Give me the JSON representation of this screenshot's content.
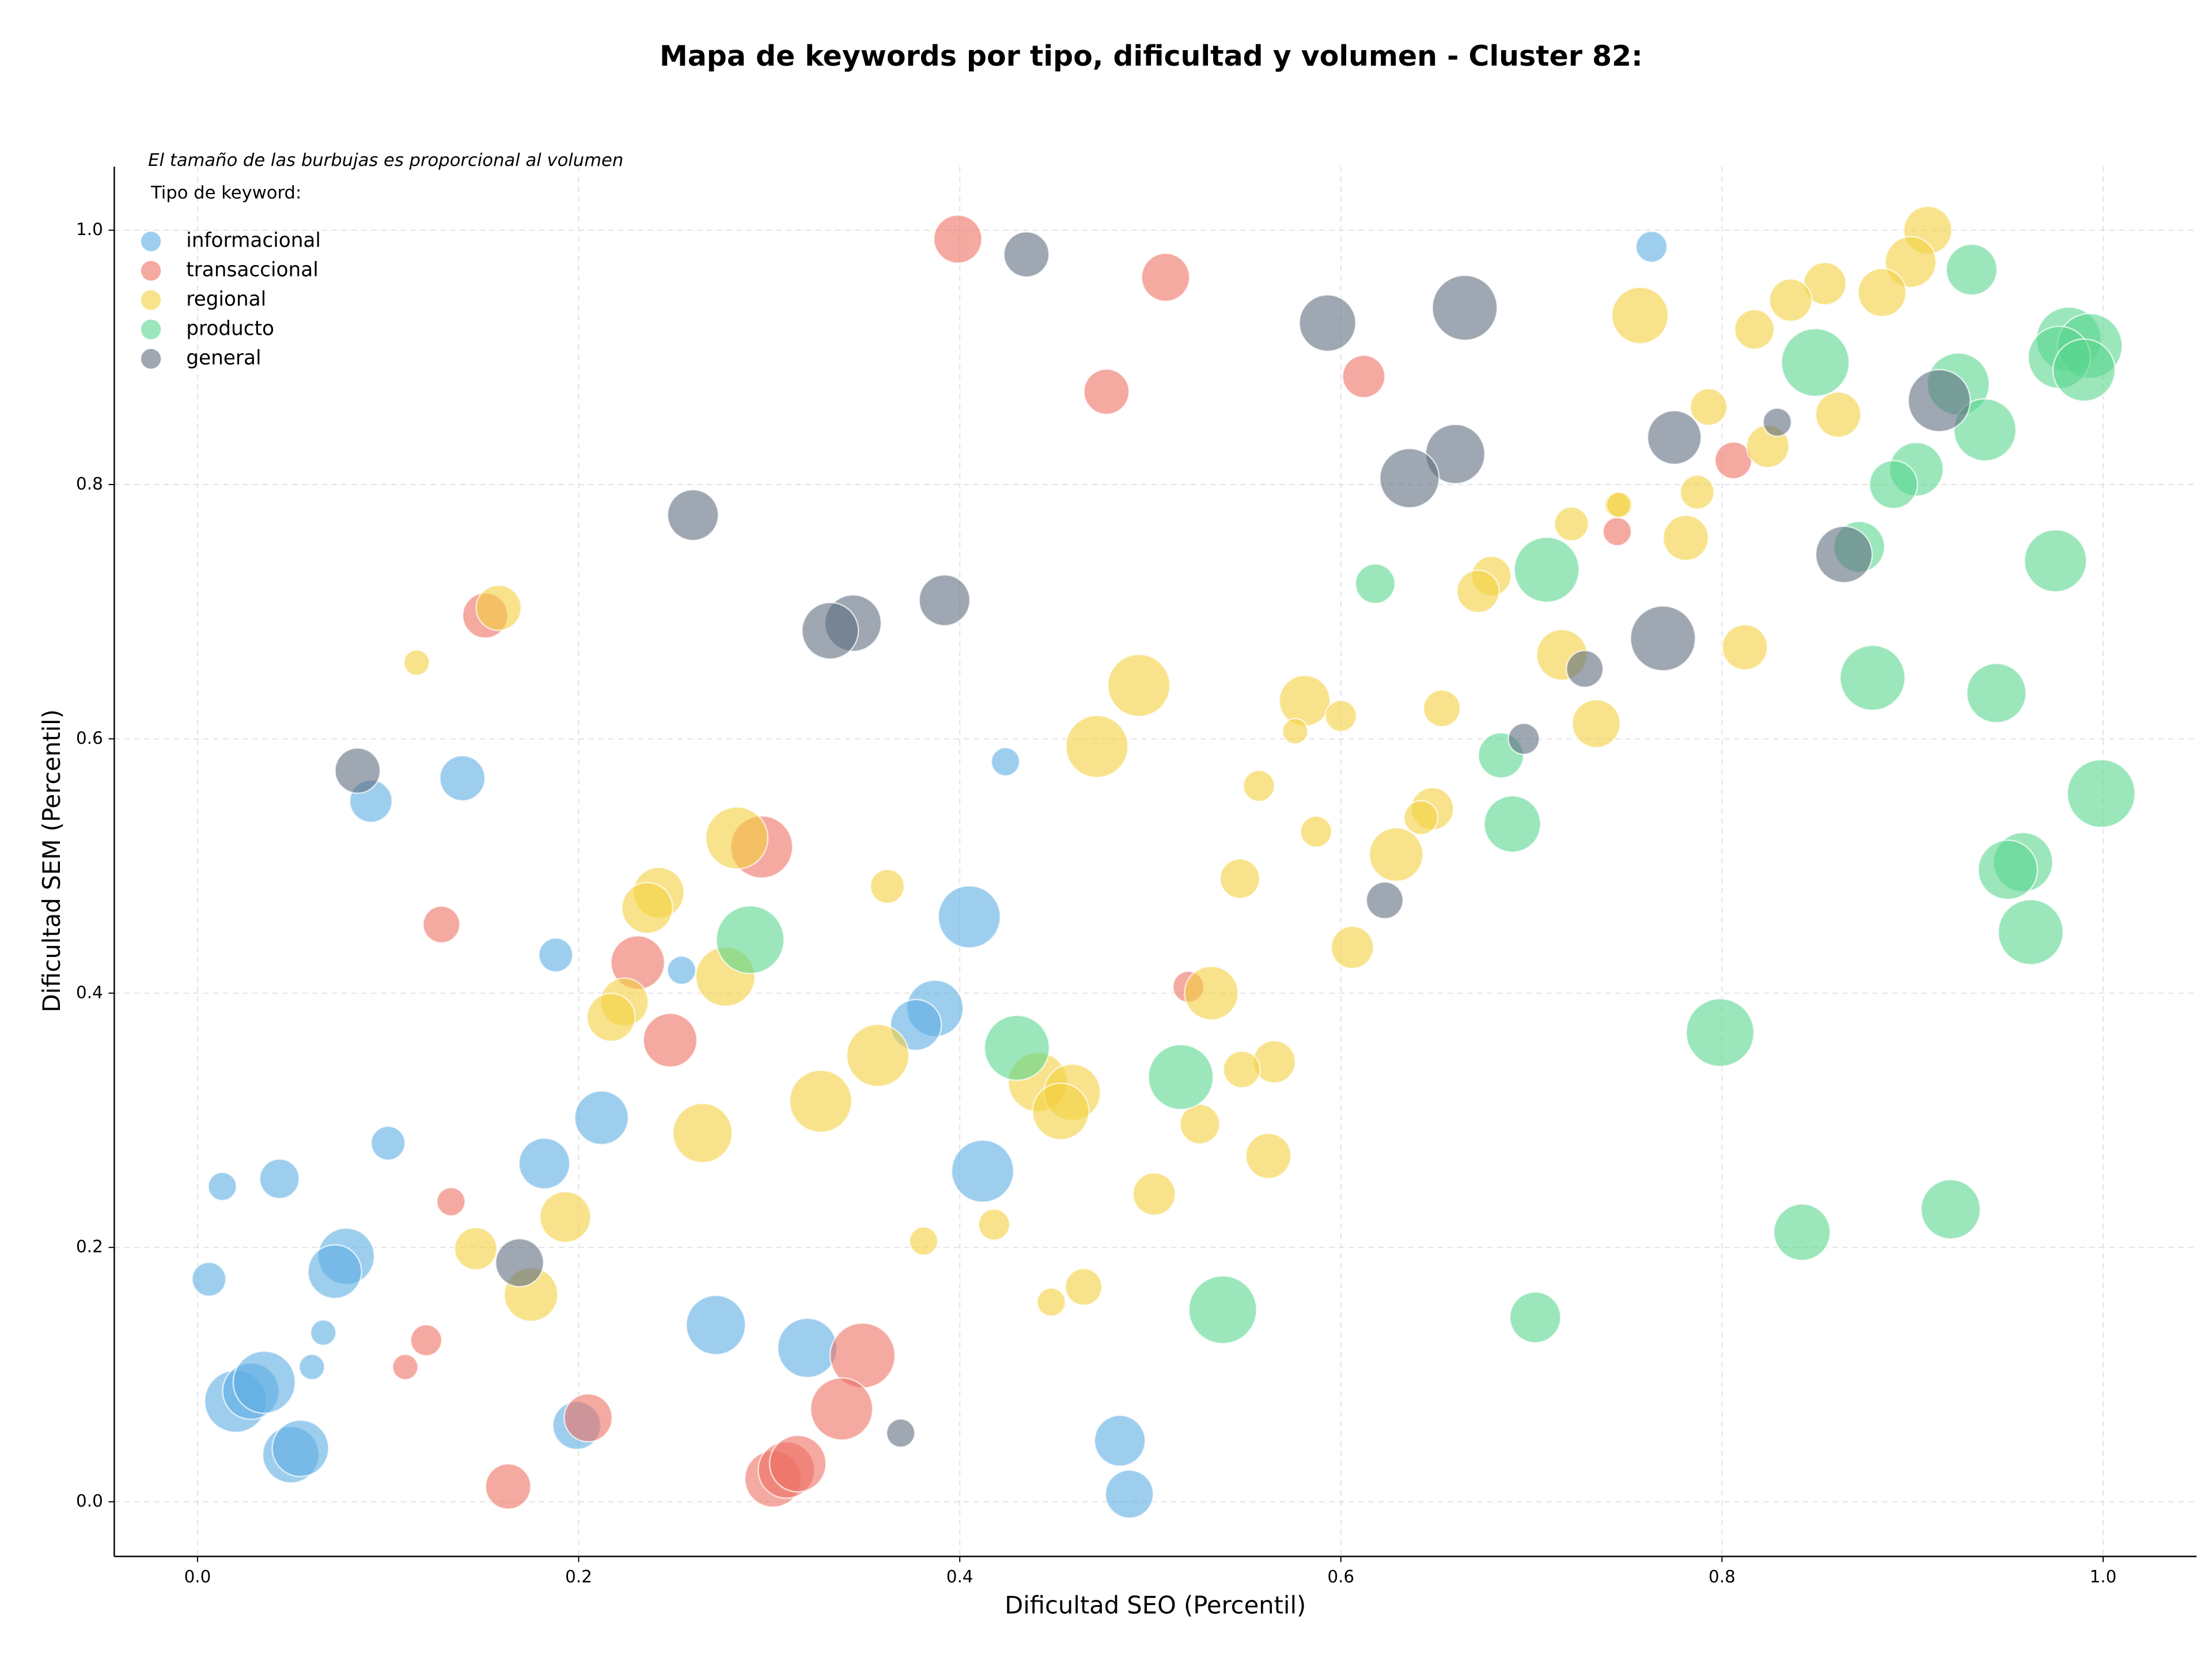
{
  "chart_data": {
    "type": "scatter",
    "title": "Mapa de keywords por tipo, dificultad y volumen - Cluster 82:",
    "note": "El tamaño de las burbujas es proporcional al volumen",
    "legend_title": "Tipo de keyword:",
    "legend_position": "upper left",
    "x_label": "Dificultad SEO (Percentil)",
    "y_label": "Dificultad SEM (Percentil)",
    "xlim": [
      -0.0437,
      1.049
    ],
    "ylim": [
      -0.043,
      1.05
    ],
    "xticks": [
      {
        "value": 0,
        "label": "0.0"
      },
      0.2,
      0.4,
      0.6,
      0.8,
      {
        "value": 1,
        "label": "1.0"
      }
    ],
    "yticks": [
      {
        "value": 0,
        "label": "0.0"
      },
      0.2,
      0.4,
      0.6,
      0.8,
      {
        "value": 1,
        "label": "1.0"
      }
    ],
    "grid": true,
    "series": [
      {
        "name": "informacional",
        "color": "#5DADE2",
        "x": [
          0.763,
          0.424,
          0.139,
          0.091,
          0.188,
          0.254,
          0.405,
          0.387,
          0.377,
          0.212,
          0.182,
          0.1,
          0.013,
          0.043,
          0.412,
          0.006,
          0.078,
          0.072,
          0.066,
          0.06,
          0.272,
          0.32,
          0.02,
          0.028,
          0.035,
          0.049,
          0.054,
          0.199,
          0.484,
          0.489
        ],
        "values": [
          0.987,
          0.582,
          0.569,
          0.551,
          0.43,
          0.418,
          0.46,
          0.388,
          0.375,
          0.302,
          0.266,
          0.282,
          0.248,
          0.254,
          0.26,
          0.175,
          0.193,
          0.181,
          0.133,
          0.106,
          0.139,
          0.121,
          0.079,
          0.087,
          0.094,
          0.037,
          0.042,
          0.06,
          0.048,
          0.006
        ],
        "sizes": [
          121,
          100,
          256,
          225,
          144,
          100,
          484,
          400,
          324,
          361,
          324,
          144,
          100,
          196,
          484,
          144,
          400,
          361,
          81,
          81,
          441,
          441,
          484,
          400,
          484,
          400,
          400,
          289,
          324,
          289
        ]
      },
      {
        "name": "transaccional",
        "color": "#EC7063",
        "x": [
          0.399,
          0.508,
          0.477,
          0.612,
          0.806,
          0.745,
          0.151,
          0.128,
          0.296,
          0.231,
          0.248,
          0.52,
          0.133,
          0.12,
          0.109,
          0.205,
          0.163,
          0.349,
          0.338,
          0.302,
          0.309,
          0.315
        ],
        "values": [
          0.993,
          0.963,
          0.873,
          0.885,
          0.819,
          0.763,
          0.697,
          0.454,
          0.515,
          0.424,
          0.363,
          0.405,
          0.236,
          0.127,
          0.106,
          0.066,
          0.012,
          0.115,
          0.073,
          0.018,
          0.025,
          0.03
        ],
        "sizes": [
          289,
          289,
          256,
          225,
          169,
          100,
          256,
          169,
          484,
          361,
          361,
          121,
          100,
          121,
          81,
          289,
          256,
          529,
          484,
          400,
          400,
          400
        ]
      },
      {
        "name": "regional",
        "color": "#F4D03F",
        "x": [
          0.908,
          0.899,
          0.854,
          0.836,
          0.757,
          0.817,
          0.884,
          0.793,
          0.824,
          0.861,
          0.787,
          0.745,
          0.746,
          0.721,
          0.781,
          0.679,
          0.672,
          0.812,
          0.716,
          0.734,
          0.581,
          0.6,
          0.576,
          0.653,
          0.494,
          0.472,
          0.557,
          0.587,
          0.648,
          0.642,
          0.629,
          0.547,
          0.606,
          0.532,
          0.158,
          0.115,
          0.283,
          0.242,
          0.236,
          0.362,
          0.224,
          0.217,
          0.277,
          0.357,
          0.327,
          0.265,
          0.193,
          0.146,
          0.175,
          0.441,
          0.459,
          0.453,
          0.565,
          0.548,
          0.526,
          0.562,
          0.502,
          0.418,
          0.381,
          0.465,
          0.448
        ],
        "values": [
          1.0,
          0.975,
          0.958,
          0.945,
          0.933,
          0.922,
          0.951,
          0.861,
          0.83,
          0.855,
          0.794,
          0.784,
          0.784,
          0.769,
          0.758,
          0.728,
          0.716,
          0.672,
          0.666,
          0.612,
          0.63,
          0.618,
          0.606,
          0.624,
          0.642,
          0.594,
          0.563,
          0.527,
          0.545,
          0.538,
          0.509,
          0.49,
          0.436,
          0.4,
          0.703,
          0.66,
          0.522,
          0.479,
          0.467,
          0.484,
          0.393,
          0.381,
          0.413,
          0.351,
          0.315,
          0.29,
          0.224,
          0.199,
          0.163,
          0.33,
          0.322,
          0.307,
          0.346,
          0.34,
          0.297,
          0.272,
          0.242,
          0.218,
          0.205,
          0.169,
          0.157
        ],
        "sizes": [
          289,
          324,
          225,
          225,
          400,
          196,
          289,
          169,
          225,
          256,
          144,
          81,
          81,
          144,
          256,
          196,
          225,
          256,
          324,
          289,
          324,
          121,
          81,
          169,
          484,
          484,
          121,
          121,
          225,
          144,
          361,
          196,
          225,
          361,
          256,
          81,
          484,
          324,
          324,
          144,
          289,
          289,
          441,
          484,
          484,
          441,
          324,
          225,
          361,
          441,
          400,
          400,
          225,
          169,
          196,
          256,
          225,
          121,
          100,
          169,
          100
        ]
      },
      {
        "name": "producto",
        "color": "#58D68D",
        "x": [
          0.931,
          0.982,
          0.993,
          0.977,
          0.99,
          0.849,
          0.924,
          0.938,
          0.902,
          0.89,
          0.872,
          0.975,
          0.618,
          0.708,
          0.879,
          0.944,
          0.999,
          0.684,
          0.69,
          0.958,
          0.95,
          0.962,
          0.29,
          0.43,
          0.516,
          0.799,
          0.92,
          0.842,
          0.538,
          0.702
        ],
        "values": [
          0.969,
          0.914,
          0.909,
          0.9,
          0.89,
          0.896,
          0.879,
          0.843,
          0.812,
          0.8,
          0.751,
          0.74,
          0.722,
          0.733,
          0.648,
          0.636,
          0.557,
          0.587,
          0.533,
          0.503,
          0.497,
          0.448,
          0.442,
          0.357,
          0.334,
          0.369,
          0.23,
          0.212,
          0.151,
          0.145
        ],
        "sizes": [
          324,
          529,
          529,
          484,
          484,
          576,
          484,
          484,
          361,
          289,
          324,
          484,
          196,
          529,
          529,
          441,
          576,
          256,
          400,
          441,
          441,
          529,
          576,
          529,
          529,
          576,
          441,
          400,
          576,
          324
        ]
      },
      {
        "name": "general",
        "color": "#5D6D7E",
        "x": [
          0.435,
          0.665,
          0.593,
          0.914,
          0.829,
          0.775,
          0.66,
          0.636,
          0.864,
          0.26,
          0.392,
          0.344,
          0.332,
          0.769,
          0.728,
          0.696,
          0.084,
          0.623,
          0.169,
          0.369
        ],
        "values": [
          0.981,
          0.939,
          0.927,
          0.866,
          0.849,
          0.837,
          0.824,
          0.805,
          0.745,
          0.776,
          0.709,
          0.691,
          0.685,
          0.679,
          0.655,
          0.6,
          0.575,
          0.473,
          0.188,
          0.054
        ],
        "sizes": [
          256,
          529,
          400,
          484,
          100,
          361,
          441,
          441,
          400,
          324,
          324,
          400,
          400,
          529,
          169,
          121,
          256,
          169,
          289,
          100
        ]
      }
    ]
  }
}
